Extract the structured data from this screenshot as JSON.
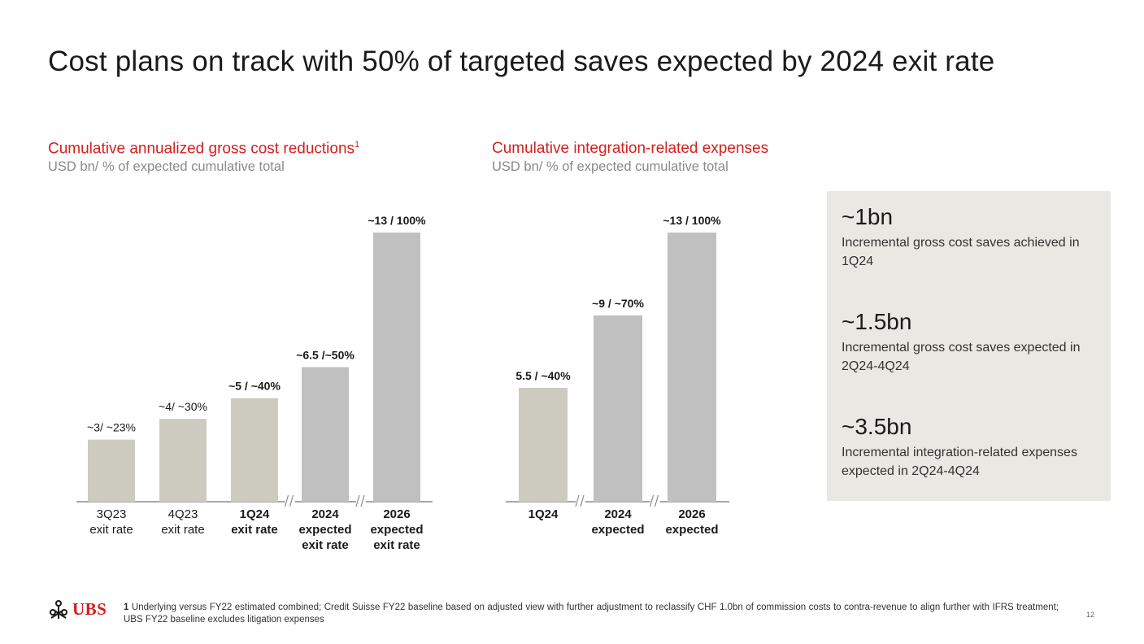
{
  "title": "Cost plans on track with 50% of targeted saves expected by 2024 exit rate",
  "chart_data": [
    {
      "type": "bar",
      "title": "Cumulative annualized gross cost reductions",
      "title_sup": "1",
      "subtitle": "USD bn/  % of expected cumulative total",
      "categories": [
        [
          "3Q23",
          "exit rate"
        ],
        [
          "4Q23",
          "exit rate"
        ],
        [
          "1Q24",
          "exit rate"
        ],
        [
          "2024",
          "expected",
          "exit rate"
        ],
        [
          "2026",
          "expected",
          "exit rate"
        ]
      ],
      "values": [
        3,
        4,
        5,
        6.5,
        13
      ],
      "data_labels": [
        "~3/ ~23%",
        "~4/ ~30%",
        "~5 / ~40%",
        "~6.5 /~50%",
        "~13 / 100%"
      ],
      "bold_labels": [
        false,
        false,
        true,
        true,
        true
      ],
      "bar_colors": [
        "#cdcbbf",
        "#cdcbbf",
        "#cdcbbf",
        "#c0c0c0",
        "#c0c0c0"
      ],
      "axis_breaks_after": [
        2,
        3
      ],
      "ylim": [
        0,
        13
      ]
    },
    {
      "type": "bar",
      "title": "Cumulative integration-related expenses",
      "subtitle": "USD bn/  % of expected cumulative total",
      "categories": [
        [
          "1Q24"
        ],
        [
          "2024",
          "expected"
        ],
        [
          "2026",
          "expected"
        ]
      ],
      "values": [
        5.5,
        9,
        13
      ],
      "data_labels": [
        "5.5 / ~40%",
        "~9 / ~70%",
        "~13 / 100%"
      ],
      "bold_labels": [
        true,
        true,
        true
      ],
      "bar_colors": [
        "#cdcbbf",
        "#c0c0c0",
        "#c0c0c0"
      ],
      "axis_breaks_after": [
        0,
        1
      ],
      "ylim": [
        0,
        13
      ]
    }
  ],
  "kpis": [
    {
      "value": "~1bn",
      "desc": "Incremental gross cost saves achieved in 1Q24"
    },
    {
      "value": "~1.5bn",
      "desc": "Incremental gross cost saves expected in 2Q24-4Q24"
    },
    {
      "value": "~3.5bn",
      "desc": "Incremental integration-related expenses expected in 2Q24-4Q24"
    }
  ],
  "logo_text": "UBS",
  "footnote": {
    "number": "1",
    "text": "Underlying versus FY22 estimated combined; Credit Suisse FY22 baseline based on adjusted view with further adjustment to reclassify CHF 1.0bn of commission costs to contra-revenue to align further with IFRS treatment; UBS FY22 baseline excludes litigation expenses"
  },
  "page_number": "12",
  "colors": {
    "accent": "#d41f1f",
    "bar_beige": "#cdcbbf",
    "bar_grey": "#c0c0c0",
    "panel": "#e9e8e2"
  }
}
